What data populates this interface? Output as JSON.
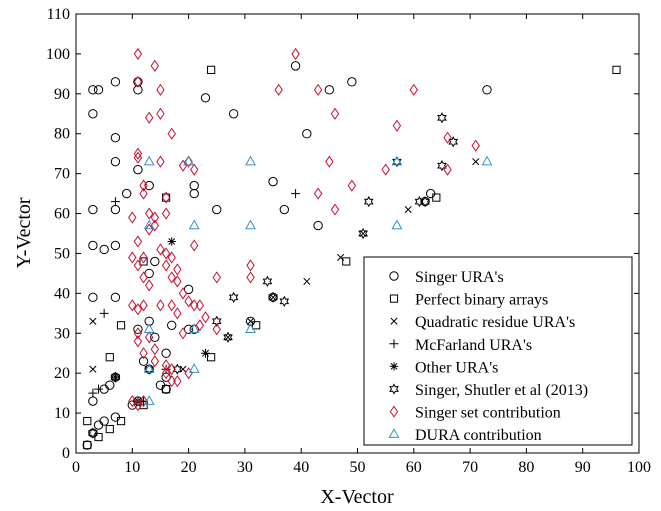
{
  "chart_data": {
    "type": "scatter",
    "title": "",
    "xlabel": "X-Vector",
    "ylabel": "Y-Vector",
    "xlim": [
      0,
      100
    ],
    "ylim": [
      0,
      110
    ],
    "xticks": [
      0,
      10,
      20,
      30,
      40,
      50,
      60,
      70,
      80,
      90,
      100
    ],
    "yticks": [
      0,
      10,
      20,
      30,
      40,
      50,
      60,
      70,
      80,
      90,
      100,
      110
    ],
    "grid": false,
    "legend_position": "bottom-right",
    "series": [
      {
        "name": "Singer URA's",
        "marker": "circle",
        "color": "#000000",
        "points": [
          [
            2,
            2
          ],
          [
            3,
            5
          ],
          [
            4,
            7
          ],
          [
            5,
            8
          ],
          [
            7,
            9
          ],
          [
            3,
            13
          ],
          [
            5,
            16
          ],
          [
            6,
            17
          ],
          [
            7,
            19
          ],
          [
            10,
            12
          ],
          [
            11,
            13
          ],
          [
            13,
            21
          ],
          [
            15,
            17
          ],
          [
            16,
            16
          ],
          [
            16,
            25
          ],
          [
            16,
            19
          ],
          [
            12,
            23
          ],
          [
            11,
            31
          ],
          [
            14,
            29
          ],
          [
            21,
            31
          ],
          [
            20,
            31
          ],
          [
            17,
            32
          ],
          [
            13,
            33
          ],
          [
            13,
            45
          ],
          [
            14,
            48
          ],
          [
            20,
            41
          ],
          [
            3,
            39
          ],
          [
            7,
            39
          ],
          [
            3,
            52
          ],
          [
            5,
            51
          ],
          [
            7,
            52
          ],
          [
            3,
            61
          ],
          [
            7,
            61
          ],
          [
            9,
            65
          ],
          [
            11,
            71
          ],
          [
            13,
            67
          ],
          [
            21,
            65
          ],
          [
            21,
            67
          ],
          [
            25,
            61
          ],
          [
            35,
            68
          ],
          [
            37,
            61
          ],
          [
            43,
            57
          ],
          [
            31,
            33
          ],
          [
            35,
            39
          ],
          [
            3,
            85
          ],
          [
            3,
            91
          ],
          [
            4,
            91
          ],
          [
            7,
            79
          ],
          [
            7,
            73
          ],
          [
            7,
            93
          ],
          [
            11,
            93
          ],
          [
            11,
            91
          ],
          [
            23,
            89
          ],
          [
            28,
            85
          ],
          [
            39,
            97
          ],
          [
            41,
            80
          ],
          [
            45,
            91
          ],
          [
            49,
            93
          ],
          [
            63,
            65
          ],
          [
            62,
            63
          ],
          [
            73,
            91
          ]
        ]
      },
      {
        "name": "Perfect binary arrays",
        "marker": "square",
        "color": "#000000",
        "points": [
          [
            2,
            2
          ],
          [
            2,
            8
          ],
          [
            4,
            4
          ],
          [
            6,
            6
          ],
          [
            6,
            24
          ],
          [
            8,
            8
          ],
          [
            8,
            32
          ],
          [
            12,
            12
          ],
          [
            12,
            48
          ],
          [
            16,
            16
          ],
          [
            16,
            64
          ],
          [
            24,
            24
          ],
          [
            24,
            96
          ],
          [
            32,
            32
          ],
          [
            48,
            48
          ],
          [
            64,
            64
          ],
          [
            96,
            96
          ]
        ]
      },
      {
        "name": "Quadratic residue URA's",
        "marker": "x",
        "color": "#000000",
        "points": [
          [
            3,
            21
          ],
          [
            3,
            33
          ],
          [
            11,
            13
          ],
          [
            19,
            21
          ],
          [
            23,
            25
          ],
          [
            27,
            29
          ],
          [
            31,
            33
          ],
          [
            35,
            39
          ],
          [
            41,
            43
          ],
          [
            47,
            49
          ],
          [
            51,
            55
          ],
          [
            59,
            61
          ],
          [
            71,
            73
          ]
        ]
      },
      {
        "name": "McFarland URA's",
        "marker": "plus",
        "color": "#000000",
        "points": [
          [
            3,
            15
          ],
          [
            4,
            16
          ],
          [
            5,
            35
          ],
          [
            7,
            63
          ],
          [
            39,
            65
          ],
          [
            23,
            25
          ],
          [
            16,
            21
          ],
          [
            12,
            13
          ]
        ]
      },
      {
        "name": "Other URA's",
        "marker": "star",
        "color": "#000000",
        "points": [
          [
            7,
            19
          ],
          [
            11,
            13
          ],
          [
            17,
            53
          ]
        ]
      },
      {
        "name": "Singer, Shutler et al (2013)",
        "marker": "hexagram",
        "color": "#000000",
        "points": [
          [
            3,
            5
          ],
          [
            7,
            19
          ],
          [
            13,
            21
          ],
          [
            18,
            21
          ],
          [
            25,
            33
          ],
          [
            27,
            29
          ],
          [
            28,
            39
          ],
          [
            34,
            43
          ],
          [
            35,
            39
          ],
          [
            37,
            38
          ],
          [
            51,
            55
          ],
          [
            52,
            63
          ],
          [
            57,
            73
          ],
          [
            61,
            63
          ],
          [
            65,
            72
          ],
          [
            65,
            84
          ],
          [
            67,
            78
          ],
          [
            62,
            63
          ]
        ]
      },
      {
        "name": "Singer set contribution",
        "marker": "diamond",
        "color": "#c8102e",
        "points": [
          [
            11,
            100
          ],
          [
            14,
            97
          ],
          [
            15,
            91
          ],
          [
            11,
            93
          ],
          [
            11,
            75
          ],
          [
            11,
            74
          ],
          [
            12,
            67
          ],
          [
            12,
            65
          ],
          [
            13,
            84
          ],
          [
            15,
            85
          ],
          [
            15,
            73
          ],
          [
            16,
            64
          ],
          [
            17,
            80
          ],
          [
            16,
            60
          ],
          [
            13,
            60
          ],
          [
            14,
            59
          ],
          [
            14,
            57
          ],
          [
            13,
            56
          ],
          [
            10,
            59
          ],
          [
            11,
            53
          ],
          [
            10,
            49
          ],
          [
            11,
            47
          ],
          [
            12,
            49
          ],
          [
            12,
            44
          ],
          [
            13,
            42
          ],
          [
            15,
            51
          ],
          [
            16,
            50
          ],
          [
            16,
            47
          ],
          [
            17,
            49
          ],
          [
            18,
            46
          ],
          [
            18,
            43
          ],
          [
            17,
            44
          ],
          [
            19,
            40
          ],
          [
            20,
            38
          ],
          [
            21,
            37
          ],
          [
            21,
            52
          ],
          [
            19,
            72
          ],
          [
            20,
            73
          ],
          [
            21,
            71
          ],
          [
            25,
            44
          ],
          [
            22,
            37
          ],
          [
            23,
            34
          ],
          [
            10,
            37
          ],
          [
            11,
            36
          ],
          [
            12,
            37
          ],
          [
            11,
            28
          ],
          [
            12,
            25
          ],
          [
            14,
            26
          ],
          [
            13,
            29
          ],
          [
            15,
            37
          ],
          [
            17,
            37
          ],
          [
            18,
            35
          ],
          [
            11,
            30
          ],
          [
            14,
            23
          ],
          [
            16,
            22
          ],
          [
            17,
            21
          ],
          [
            16,
            20
          ],
          [
            17,
            18
          ],
          [
            18,
            18
          ],
          [
            20,
            20
          ],
          [
            19,
            30
          ],
          [
            22,
            32
          ],
          [
            25,
            31
          ],
          [
            31,
            44
          ],
          [
            31,
            47
          ],
          [
            36,
            91
          ],
          [
            39,
            100
          ],
          [
            43,
            91
          ],
          [
            43,
            65
          ],
          [
            45,
            73
          ],
          [
            46,
            61
          ],
          [
            46,
            85
          ],
          [
            49,
            67
          ],
          [
            55,
            71
          ],
          [
            57,
            82
          ],
          [
            60,
            91
          ],
          [
            66,
            71
          ],
          [
            66,
            79
          ],
          [
            71,
            77
          ],
          [
            12,
            13
          ],
          [
            10,
            13
          ],
          [
            11,
            12
          ]
        ]
      },
      {
        "name": "DURA contribution",
        "marker": "triangle",
        "color": "#3a8fc9",
        "points": [
          [
            13,
            13
          ],
          [
            13,
            21
          ],
          [
            13,
            31
          ],
          [
            13,
            57
          ],
          [
            13,
            73
          ],
          [
            20,
            73
          ],
          [
            21,
            57
          ],
          [
            21,
            31
          ],
          [
            21,
            21
          ],
          [
            31,
            73
          ],
          [
            31,
            57
          ],
          [
            31,
            31
          ],
          [
            57,
            73
          ],
          [
            57,
            57
          ],
          [
            73,
            73
          ]
        ]
      }
    ]
  }
}
